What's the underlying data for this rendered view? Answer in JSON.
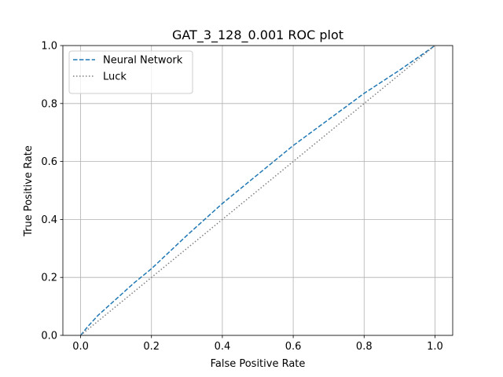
{
  "chart_data": {
    "type": "line",
    "title": "GAT_3_128_0.001 ROC plot",
    "xlabel": "False Positive Rate",
    "ylabel": "True Positive Rate",
    "xlim": [
      -0.05,
      1.05
    ],
    "ylim": [
      0.0,
      1.0
    ],
    "xticks": [
      0.0,
      0.2,
      0.4,
      0.6,
      0.8,
      1.0
    ],
    "yticks": [
      0.0,
      0.2,
      0.4,
      0.6,
      0.8,
      1.0
    ],
    "xtick_labels": [
      "0.0",
      "0.2",
      "0.4",
      "0.6",
      "0.8",
      "1.0"
    ],
    "ytick_labels": [
      "0.0",
      "0.2",
      "0.4",
      "0.6",
      "0.8",
      "1.0"
    ],
    "grid": true,
    "legend_position": "upper-left",
    "series": [
      {
        "name": "Neural Network",
        "style": "dashed",
        "color": "#1f77b4",
        "x": [
          0.0,
          0.02,
          0.05,
          0.1,
          0.15,
          0.2,
          0.3,
          0.4,
          0.5,
          0.6,
          0.7,
          0.8,
          0.9,
          1.0
        ],
        "y": [
          0.0,
          0.03,
          0.07,
          0.125,
          0.18,
          0.23,
          0.345,
          0.455,
          0.555,
          0.655,
          0.745,
          0.835,
          0.915,
          1.0
        ]
      },
      {
        "name": "Luck",
        "style": "dotted",
        "color": "#7f7f7f",
        "x": [
          0.0,
          1.0
        ],
        "y": [
          0.0,
          1.0
        ]
      }
    ]
  }
}
